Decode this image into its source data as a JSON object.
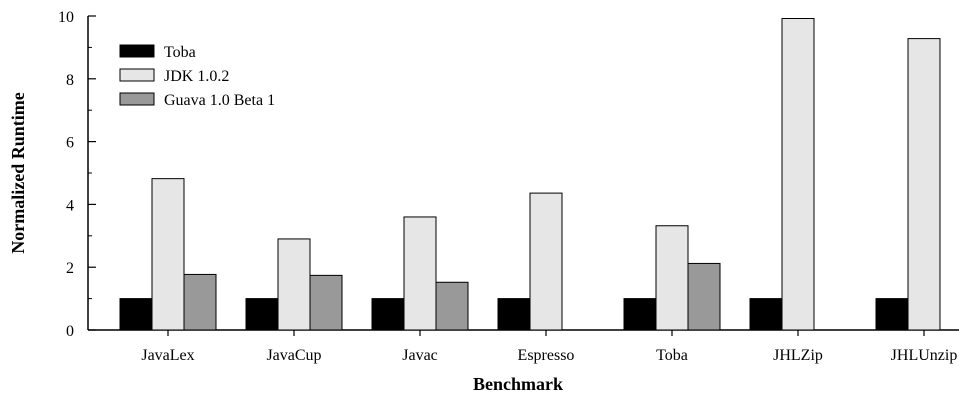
{
  "chart_data": {
    "type": "bar",
    "title": "",
    "xlabel": "Benchmark",
    "ylabel": "Normalized Runtime",
    "ylim": [
      0,
      10
    ],
    "yticks": [
      0,
      2,
      4,
      6,
      8,
      10
    ],
    "grid": false,
    "legend_position": "top-left",
    "categories": [
      "JavaLex",
      "JavaCup",
      "Javac",
      "Espresso",
      "Toba",
      "JHLZip",
      "JHLUnzip"
    ],
    "series": [
      {
        "name": "Toba",
        "color": "#000000",
        "values": [
          1,
          1,
          1,
          1,
          1,
          1,
          1
        ]
      },
      {
        "name": "JDK 1.0.2",
        "color": "#e6e6e6",
        "values": [
          4.82,
          2.9,
          3.6,
          4.36,
          3.32,
          9.92,
          9.28
        ]
      },
      {
        "name": "Guava 1.0 Beta 1",
        "color": "#999999",
        "values": [
          1.77,
          1.74,
          1.52,
          null,
          2.12,
          null,
          null
        ]
      }
    ]
  }
}
